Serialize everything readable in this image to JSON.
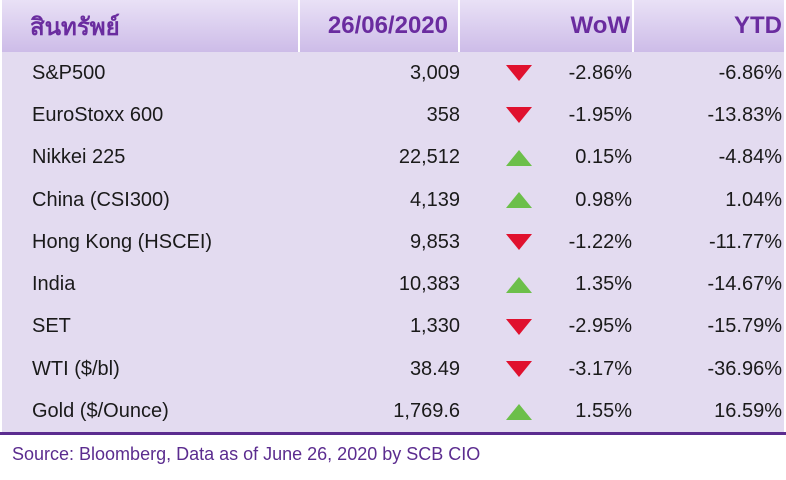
{
  "header": {
    "col_asset": "สินทรัพย์",
    "col_date": "26/06/2020",
    "col_wow": "WoW",
    "col_ytd": "YTD"
  },
  "rows": [
    {
      "name": "S&P500",
      "value": "3,009",
      "direction": "down",
      "wow": "-2.86%",
      "ytd": "-6.86%"
    },
    {
      "name": "EuroStoxx 600",
      "value": "358",
      "direction": "down",
      "wow": "-1.95%",
      "ytd": "-13.83%"
    },
    {
      "name": "Nikkei 225",
      "value": "22,512",
      "direction": "up",
      "wow": "0.15%",
      "ytd": "-4.84%"
    },
    {
      "name": "China (CSI300)",
      "value": "4,139",
      "direction": "up",
      "wow": "0.98%",
      "ytd": "1.04%"
    },
    {
      "name": "Hong Kong (HSCEI)",
      "value": "9,853",
      "direction": "down",
      "wow": "-1.22%",
      "ytd": "-11.77%"
    },
    {
      "name": "India",
      "value": "10,383",
      "direction": "up",
      "wow": "1.35%",
      "ytd": "-14.67%"
    },
    {
      "name": "SET",
      "value": "1,330",
      "direction": "down",
      "wow": "-2.95%",
      "ytd": "-15.79%"
    },
    {
      "name": "WTI ($/bl)",
      "value": "38.49",
      "direction": "down",
      "wow": "-3.17%",
      "ytd": "-36.96%"
    },
    {
      "name": "Gold ($/Ounce)",
      "value": "1,769.6",
      "direction": "up",
      "wow": "1.55%",
      "ytd": "16.59%"
    }
  ],
  "colors": {
    "header_text": "#6a2c9f",
    "row_background": "#e3dbf0",
    "down_arrow": "#e0112e",
    "up_arrow": "#6cbf4a",
    "source_text": "#5b2c8f"
  },
  "source": "Source: Bloomberg, Data as of June 26, 2020 by SCB CIO"
}
